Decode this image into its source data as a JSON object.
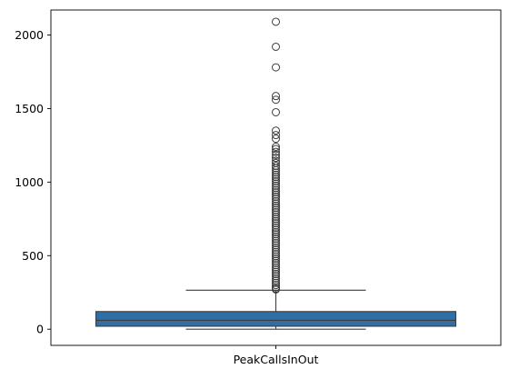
{
  "chart_data": {
    "type": "box",
    "categories": [
      "PeakCallsInOut"
    ],
    "xlabel": "",
    "ylabel": "",
    "ylim": [
      -110,
      2170
    ],
    "yticks": [
      0,
      500,
      1000,
      1500,
      2000
    ],
    "grid": false,
    "box": {
      "whisker_low": 0,
      "q1": 20,
      "median": 60,
      "q3": 120,
      "whisker_high": 265
    },
    "outliers": [
      2090,
      1920,
      1780,
      1585,
      1560,
      1475,
      1350,
      1320,
      1295,
      1240,
      1225,
      1205,
      1185,
      1165,
      1145,
      1130,
      1110,
      1095,
      1080,
      1065,
      1050,
      1035,
      1020,
      1005,
      990,
      975,
      960,
      945,
      930,
      915,
      900,
      885,
      870,
      855,
      840,
      825,
      810,
      795,
      780,
      765,
      750,
      735,
      720,
      705,
      690,
      675,
      660,
      645,
      630,
      615,
      600,
      585,
      570,
      555,
      540,
      525,
      510,
      495,
      480,
      465,
      450,
      435,
      420,
      405,
      390,
      375,
      360,
      345,
      330,
      315,
      300,
      285,
      275,
      270
    ],
    "colors": {
      "box_fill": "#2f6fa5",
      "line": "#3d3d3d",
      "axis": "#000000",
      "marker_edge": "#3d3d3d"
    }
  }
}
